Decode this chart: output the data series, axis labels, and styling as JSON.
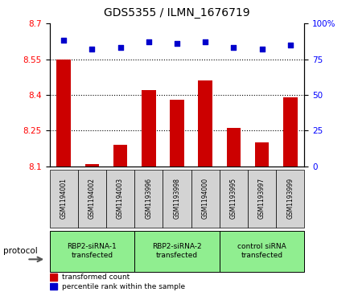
{
  "title": "GDS5355 / ILMN_1676719",
  "samples": [
    "GSM1194001",
    "GSM1194002",
    "GSM1194003",
    "GSM1193996",
    "GSM1193998",
    "GSM1194000",
    "GSM1193995",
    "GSM1193997",
    "GSM1193999"
  ],
  "transformed_counts": [
    8.55,
    8.11,
    8.19,
    8.42,
    8.38,
    8.46,
    8.26,
    8.2,
    8.39
  ],
  "percentile_ranks": [
    88,
    82,
    83,
    87,
    86,
    87,
    83,
    82,
    85
  ],
  "groups": [
    {
      "label": "RBP2-siRNA-1\ntransfected",
      "start": 0,
      "end": 3,
      "color": "#90EE90"
    },
    {
      "label": "RBP2-siRNA-2\ntransfected",
      "start": 3,
      "end": 6,
      "color": "#90EE90"
    },
    {
      "label": "control siRNA\ntransfected",
      "start": 6,
      "end": 9,
      "color": "#90EE90"
    }
  ],
  "bar_color": "#cc0000",
  "dot_color": "#0000cc",
  "ylim_left": [
    8.1,
    8.7
  ],
  "ylim_right": [
    0,
    100
  ],
  "yticks_left": [
    8.1,
    8.25,
    8.4,
    8.55,
    8.7
  ],
  "yticks_right": [
    0,
    25,
    50,
    75,
    100
  ],
  "bar_width": 0.5,
  "background_color": "#ffffff",
  "sample_area_color": "#d3d3d3"
}
